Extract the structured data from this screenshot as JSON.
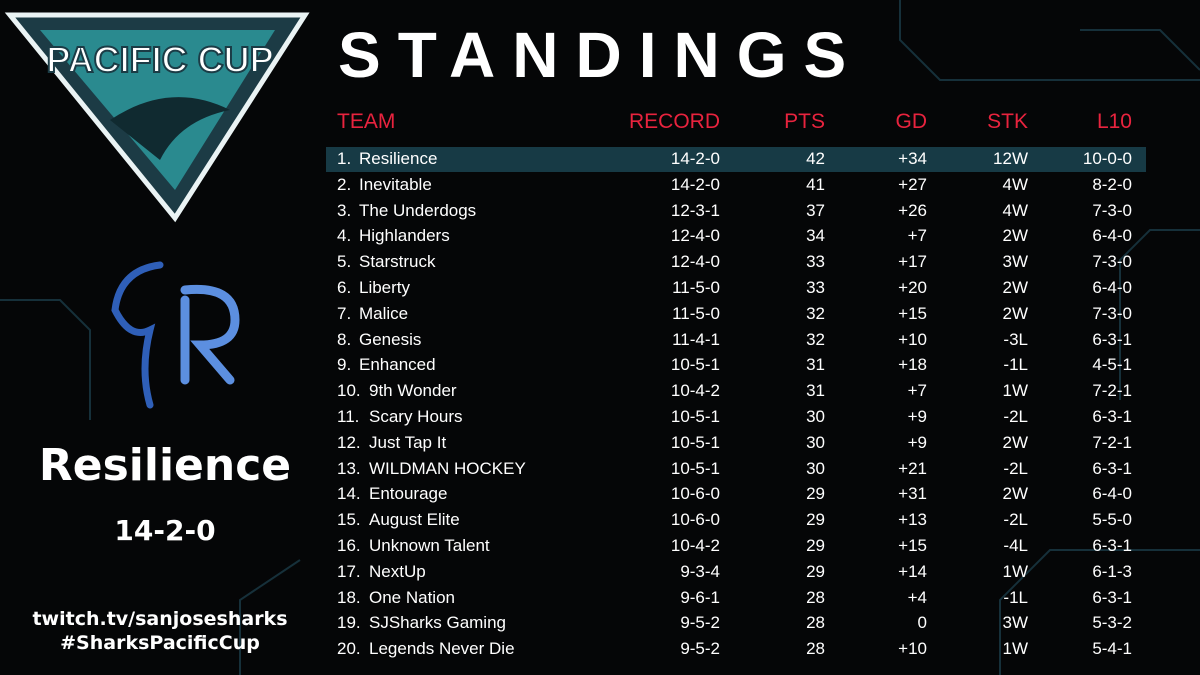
{
  "logo": {
    "text": "PACIFIC CUP"
  },
  "title": "STANDINGS",
  "featured": {
    "team": "Resilience",
    "record": "14-2-0"
  },
  "links": [
    "twitch.tv/sanjosesharks",
    "#SharksPacificCup"
  ],
  "table": {
    "header": [
      "TEAM",
      "RECORD",
      "PTS",
      "GD",
      "STK",
      "L10"
    ],
    "rows": [
      [
        "1.",
        "Resilience",
        "14-2-0",
        "42",
        "+34",
        "12W",
        "10-0-0"
      ],
      [
        "2.",
        "Inevitable",
        "14-2-0",
        "41",
        "+27",
        "4W",
        "8-2-0"
      ],
      [
        "3.",
        "The Underdogs",
        "12-3-1",
        "37",
        "+26",
        "4W",
        "7-3-0"
      ],
      [
        "4.",
        "Highlanders",
        "12-4-0",
        "34",
        "+7",
        "2W",
        "6-4-0"
      ],
      [
        "5.",
        "Starstruck",
        "12-4-0",
        "33",
        "+17",
        "3W",
        "7-3-0"
      ],
      [
        "6.",
        "Liberty",
        "11-5-0",
        "33",
        "+20",
        "2W",
        "6-4-0"
      ],
      [
        "7.",
        "Malice",
        "11-5-0",
        "32",
        "+15",
        "2W",
        "7-3-0"
      ],
      [
        "8.",
        "Genesis",
        "11-4-1",
        "32",
        "+10",
        "-3L",
        "6-3-1"
      ],
      [
        "9.",
        "Enhanced",
        "10-5-1",
        "31",
        "+18",
        "-1L",
        "4-5-1"
      ],
      [
        "10.",
        "9th Wonder",
        "10-4-2",
        "31",
        "+7",
        "1W",
        "7-2-1"
      ],
      [
        "11.",
        "Scary Hours",
        "10-5-1",
        "30",
        "+9",
        "-2L",
        "6-3-1"
      ],
      [
        "12.",
        "Just Tap It",
        "10-5-1",
        "30",
        "+9",
        "2W",
        "7-2-1"
      ],
      [
        "13.",
        "WILDMAN HOCKEY",
        "10-5-1",
        "30",
        "+21",
        "-2L",
        "6-3-1"
      ],
      [
        "14.",
        "Entourage",
        "10-6-0",
        "29",
        "+31",
        "2W",
        "6-4-0"
      ],
      [
        "15.",
        "August Elite",
        "10-6-0",
        "29",
        "+13",
        "-2L",
        "5-5-0"
      ],
      [
        "16.",
        "Unknown Talent",
        "10-4-2",
        "29",
        "+15",
        "-4L",
        "6-3-1"
      ],
      [
        "17.",
        "NextUp",
        "9-3-4",
        "29",
        "+14",
        "1W",
        "6-1-3"
      ],
      [
        "18.",
        "One Nation",
        "9-6-1",
        "28",
        "+4",
        "-1L",
        "6-3-1"
      ],
      [
        "19.",
        "SJSharks Gaming",
        "9-5-2",
        "28",
        "0",
        "3W",
        "5-3-2"
      ],
      [
        "20.",
        "Legends Never Die",
        "9-5-2",
        "28",
        "+10",
        "1W",
        "5-4-1"
      ]
    ]
  }
}
